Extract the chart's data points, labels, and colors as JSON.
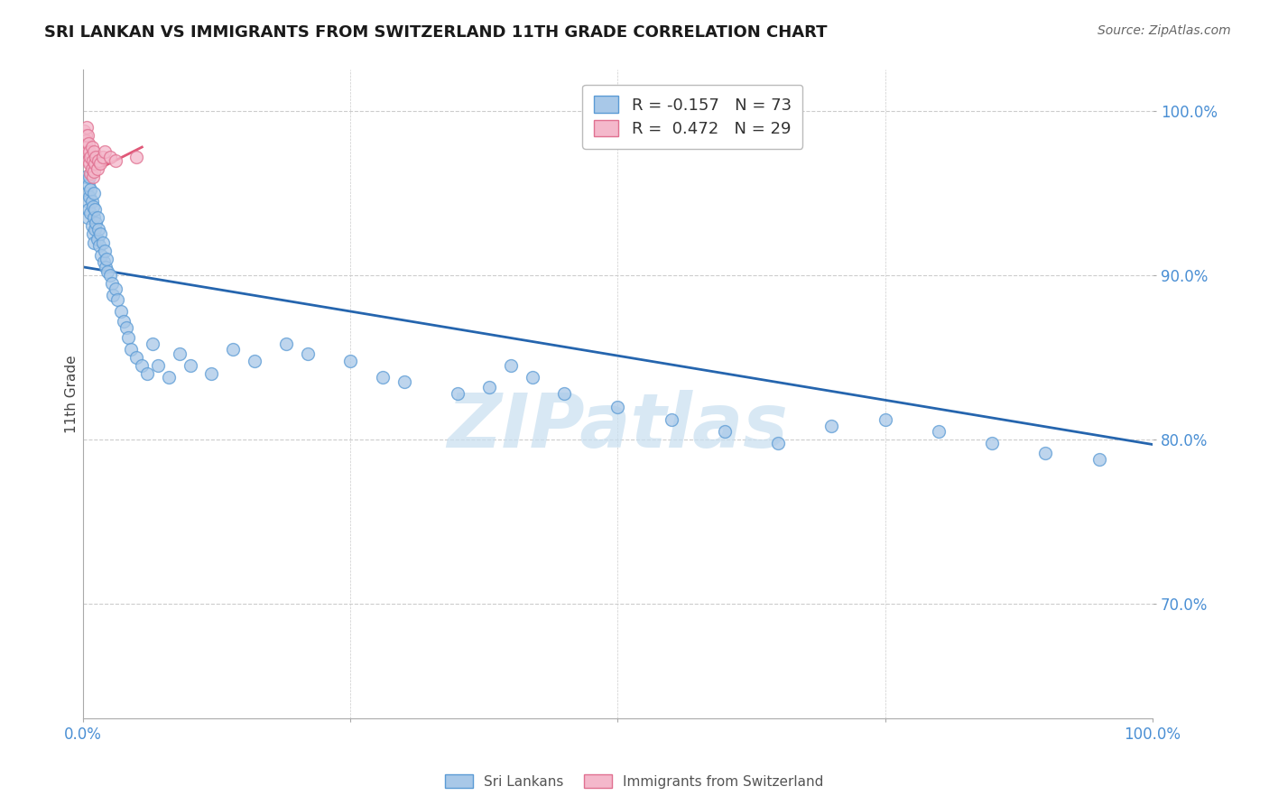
{
  "title": "SRI LANKAN VS IMMIGRANTS FROM SWITZERLAND 11TH GRADE CORRELATION CHART",
  "source_text": "Source: ZipAtlas.com",
  "ylabel": "11th Grade",
  "watermark": "ZIPatlas",
  "legend_blue_label": "Sri Lankans",
  "legend_pink_label": "Immigrants from Switzerland",
  "r_blue": -0.157,
  "n_blue": 73,
  "r_pink": 0.472,
  "n_pink": 29,
  "blue_scatter_x": [
    0.002,
    0.003,
    0.004,
    0.004,
    0.005,
    0.005,
    0.006,
    0.006,
    0.007,
    0.007,
    0.008,
    0.008,
    0.009,
    0.009,
    0.01,
    0.01,
    0.01,
    0.011,
    0.011,
    0.012,
    0.013,
    0.013,
    0.014,
    0.015,
    0.016,
    0.017,
    0.018,
    0.019,
    0.02,
    0.021,
    0.022,
    0.023,
    0.025,
    0.027,
    0.028,
    0.03,
    0.032,
    0.035,
    0.038,
    0.04,
    0.042,
    0.045,
    0.05,
    0.055,
    0.06,
    0.065,
    0.07,
    0.08,
    0.09,
    0.1,
    0.12,
    0.14,
    0.16,
    0.19,
    0.21,
    0.25,
    0.28,
    0.3,
    0.35,
    0.38,
    0.4,
    0.42,
    0.45,
    0.5,
    0.55,
    0.6,
    0.65,
    0.7,
    0.75,
    0.8,
    0.85,
    0.9,
    0.95
  ],
  "blue_scatter_y": [
    0.96,
    0.95,
    0.945,
    0.935,
    0.955,
    0.94,
    0.96,
    0.948,
    0.952,
    0.938,
    0.945,
    0.93,
    0.942,
    0.925,
    0.95,
    0.935,
    0.92,
    0.94,
    0.928,
    0.932,
    0.935,
    0.922,
    0.928,
    0.918,
    0.925,
    0.912,
    0.92,
    0.908,
    0.915,
    0.905,
    0.91,
    0.902,
    0.9,
    0.895,
    0.888,
    0.892,
    0.885,
    0.878,
    0.872,
    0.868,
    0.862,
    0.855,
    0.85,
    0.845,
    0.84,
    0.858,
    0.845,
    0.838,
    0.852,
    0.845,
    0.84,
    0.855,
    0.848,
    0.858,
    0.852,
    0.848,
    0.838,
    0.835,
    0.828,
    0.832,
    0.845,
    0.838,
    0.828,
    0.82,
    0.812,
    0.805,
    0.798,
    0.808,
    0.812,
    0.805,
    0.798,
    0.792,
    0.788
  ],
  "pink_scatter_x": [
    0.001,
    0.002,
    0.002,
    0.003,
    0.003,
    0.004,
    0.004,
    0.005,
    0.005,
    0.006,
    0.006,
    0.007,
    0.007,
    0.008,
    0.008,
    0.009,
    0.009,
    0.01,
    0.01,
    0.011,
    0.012,
    0.013,
    0.014,
    0.016,
    0.018,
    0.02,
    0.025,
    0.03,
    0.05
  ],
  "pink_scatter_y": [
    0.988,
    0.985,
    0.982,
    0.99,
    0.978,
    0.985,
    0.975,
    0.98,
    0.97,
    0.975,
    0.968,
    0.972,
    0.962,
    0.978,
    0.965,
    0.97,
    0.96,
    0.975,
    0.963,
    0.968,
    0.972,
    0.965,
    0.97,
    0.968,
    0.972,
    0.975,
    0.972,
    0.97,
    0.972
  ],
  "blue_line_x": [
    0.0,
    1.0
  ],
  "blue_line_y_start": 0.905,
  "blue_line_y_end": 0.797,
  "pink_line_x": [
    0.0,
    0.055
  ],
  "pink_line_y_start": 0.96,
  "pink_line_y_end": 0.978,
  "xlim": [
    0.0,
    1.0
  ],
  "ylim": [
    0.63,
    1.025
  ],
  "ytick_positions": [
    1.0,
    0.9,
    0.8,
    0.7
  ],
  "ytick_labels": [
    "100.0%",
    "90.0%",
    "80.0%",
    "70.0%"
  ],
  "background_color": "#ffffff",
  "blue_color": "#a8c8e8",
  "blue_edge_color": "#5b9bd5",
  "blue_line_color": "#2565ae",
  "pink_color": "#f4b8cb",
  "pink_edge_color": "#e07090",
  "pink_line_color": "#e05878",
  "grid_color": "#cccccc",
  "axis_color": "#aaaaaa",
  "tick_label_color": "#4a8fd4",
  "title_fontsize": 13,
  "axis_label_fontsize": 11,
  "legend_fontsize": 13,
  "watermark_fontsize": 60,
  "watermark_color": "#c8dff0",
  "scatter_size": 100
}
